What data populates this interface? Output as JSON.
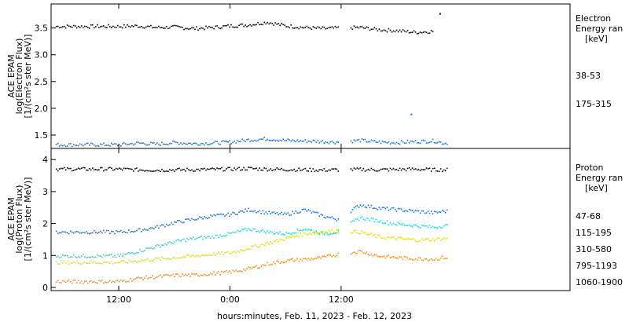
{
  "chart_data": [
    {
      "type": "scatter",
      "panel": "electron",
      "ylabel_lines": [
        "ACE EPAM",
        "log(Electron Flux)",
        "[1/(cm²s ster MeV)]"
      ],
      "ylim": [
        1.25,
        3.95
      ],
      "yticks": [
        "1.5",
        "2.0",
        "2.5",
        "3.0",
        "3.5"
      ],
      "legend_title": [
        "Electron",
        "Energy ran",
        "[keV]"
      ],
      "series": [
        {
          "name": "38-53",
          "color": "#000000",
          "points": [
            [
              0,
              3.54
            ],
            [
              2,
              3.55
            ],
            [
              4,
              3.52
            ],
            [
              6,
              3.53
            ],
            [
              8,
              3.5
            ],
            [
              10,
              3.52
            ],
            [
              12,
              3.55
            ],
            [
              14,
              3.57
            ],
            [
              16,
              3.62
            ],
            [
              18,
              3.55
            ],
            [
              20,
              3.52
            ],
            [
              22,
              3.5
            ],
            [
              23.5,
              3.51
            ],
            [
              26,
              3.52
            ],
            [
              28,
              3.48
            ],
            [
              30,
              3.46
            ],
            [
              32,
              3.43
            ],
            [
              34,
              3.45
            ],
            [
              34.6,
              3.78
            ]
          ]
        },
        {
          "name": "175-315",
          "color": "#1a6fc8",
          "points": [
            [
              0,
              1.33
            ],
            [
              2,
              1.36
            ],
            [
              4,
              1.34
            ],
            [
              6,
              1.37
            ],
            [
              8,
              1.35
            ],
            [
              10,
              1.36
            ],
            [
              12,
              1.38
            ],
            [
              14,
              1.42
            ],
            [
              16,
              1.44
            ],
            [
              18,
              1.41
            ],
            [
              20,
              1.4
            ],
            [
              22,
              1.39
            ],
            [
              23.5,
              1.38
            ],
            [
              26,
              1.41
            ],
            [
              28,
              1.38
            ],
            [
              30,
              1.37
            ],
            [
              31.5,
              1.9
            ],
            [
              32,
              1.39
            ],
            [
              34,
              1.4
            ],
            [
              35,
              1.36
            ]
          ]
        }
      ]
    },
    {
      "type": "scatter",
      "panel": "proton",
      "ylabel_lines": [
        "ACE EPAM",
        "log(Proton Flux)",
        "[1/(cm²s ster MeV)]"
      ],
      "ylim": [
        -0.1,
        4.35
      ],
      "yticks": [
        "0",
        "1",
        "2",
        "3",
        "4"
      ],
      "legend_title": [
        "Proton",
        "Energy ran",
        "[keV]"
      ],
      "series": [
        {
          "name": "47-68",
          "color": "#000000",
          "points": [
            [
              0,
              3.72
            ],
            [
              2,
              3.7
            ],
            [
              4,
              3.69
            ],
            [
              6,
              3.7
            ],
            [
              8,
              3.7
            ],
            [
              10,
              3.71
            ],
            [
              12,
              3.72
            ],
            [
              14,
              3.74
            ],
            [
              16,
              3.72
            ],
            [
              18,
              3.71
            ],
            [
              20,
              3.7
            ],
            [
              22,
              3.69
            ],
            [
              23.5,
              3.7
            ],
            [
              26,
              3.71
            ],
            [
              28,
              3.7
            ],
            [
              30,
              3.71
            ],
            [
              32,
              3.72
            ],
            [
              34,
              3.7
            ],
            [
              35,
              3.7
            ]
          ]
        },
        {
          "name": "115-195",
          "color": "#1a6fc8",
          "points": [
            [
              0,
              1.75
            ],
            [
              2,
              1.8
            ],
            [
              4,
              1.9
            ],
            [
              6,
              2.05
            ],
            [
              8,
              2.15
            ],
            [
              10,
              2.25
            ],
            [
              12,
              2.3
            ],
            [
              14,
              2.45
            ],
            [
              16,
              2.35
            ],
            [
              18,
              2.3
            ],
            [
              20,
              2.45
            ],
            [
              22,
              2.25
            ],
            [
              23.5,
              2.15
            ],
            [
              26,
              2.6
            ],
            [
              28,
              2.5
            ],
            [
              30,
              2.45
            ],
            [
              32,
              2.4
            ],
            [
              34,
              2.35
            ],
            [
              35,
              2.4
            ]
          ]
        },
        {
          "name": "310-580",
          "color": "#22d3d3",
          "points": [
            [
              0,
              1.0
            ],
            [
              2,
              1.15
            ],
            [
              4,
              1.3
            ],
            [
              6,
              1.45
            ],
            [
              8,
              1.55
            ],
            [
              10,
              1.6
            ],
            [
              12,
              1.7
            ],
            [
              14,
              1.85
            ],
            [
              16,
              1.75
            ],
            [
              18,
              1.7
            ],
            [
              20,
              1.85
            ],
            [
              22,
              1.7
            ],
            [
              23.5,
              1.75
            ],
            [
              26,
              2.2
            ],
            [
              28,
              2.1
            ],
            [
              30,
              2.0
            ],
            [
              32,
              1.95
            ],
            [
              34,
              1.9
            ],
            [
              35,
              1.95
            ]
          ]
        },
        {
          "name": "795-1193",
          "color": "#d4e010",
          "points": [
            [
              0,
              0.8
            ],
            [
              2,
              0.85
            ],
            [
              4,
              0.9
            ],
            [
              6,
              0.95
            ],
            [
              8,
              1.0
            ],
            [
              10,
              1.05
            ],
            [
              12,
              1.1
            ],
            [
              14,
              1.25
            ],
            [
              16,
              1.4
            ],
            [
              18,
              1.55
            ],
            [
              20,
              1.7
            ],
            [
              22,
              1.75
            ],
            [
              23.5,
              1.8
            ],
            [
              26,
              1.75
            ],
            [
              28,
              1.6
            ],
            [
              30,
              1.55
            ],
            [
              32,
              1.5
            ],
            [
              34,
              1.52
            ],
            [
              35,
              1.55
            ]
          ]
        },
        {
          "name": "1060-1900",
          "color": "#f08a1c",
          "points": [
            [
              0,
              0.2
            ],
            [
              2,
              0.3
            ],
            [
              4,
              0.35
            ],
            [
              6,
              0.4
            ],
            [
              8,
              0.4
            ],
            [
              10,
              0.45
            ],
            [
              12,
              0.5
            ],
            [
              14,
              0.6
            ],
            [
              16,
              0.75
            ],
            [
              18,
              0.85
            ],
            [
              20,
              0.9
            ],
            [
              22,
              0.95
            ],
            [
              23.5,
              1.05
            ],
            [
              26,
              1.15
            ],
            [
              28,
              1.0
            ],
            [
              30,
              0.95
            ],
            [
              32,
              0.92
            ],
            [
              34,
              0.9
            ],
            [
              35,
              0.95
            ]
          ]
        }
      ]
    }
  ],
  "x_axis": {
    "ticks": [
      "12:00",
      "0:00",
      "12:00"
    ],
    "label": "hours:minutes, Feb. 11, 2023 - Feb. 12, 2023"
  }
}
